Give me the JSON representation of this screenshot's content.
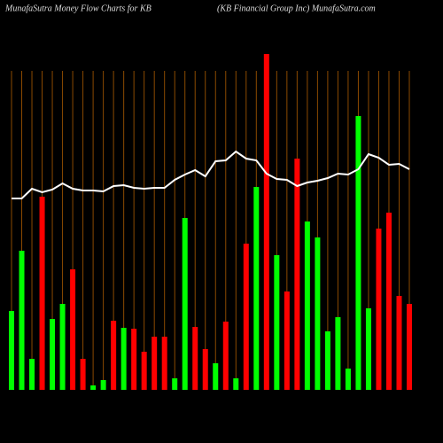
{
  "title": "MunafaSutra  Money Flow  Charts for KB",
  "subtitle": "(KB Financial Group Inc) MunafaSutra.com",
  "chart_data": {
    "type": "bar",
    "categories": [
      null,
      null,
      null,
      null,
      null,
      null,
      null,
      null,
      null,
      null,
      null,
      null,
      null,
      null,
      null,
      null,
      null,
      null,
      null,
      null,
      null,
      null,
      null,
      null,
      null,
      null,
      null,
      null,
      null,
      null,
      null,
      null,
      null,
      null,
      null,
      null,
      null,
      null,
      null,
      null
    ],
    "ylim": [
      0,
      400
    ],
    "grid": true,
    "grid_color": "#8b4a00",
    "series": [
      {
        "type": "bar",
        "colors": [
          "#00ff00",
          "#00ff00",
          "#00ff00",
          "#ff0000",
          "#00ff00",
          "#00ff00",
          "#ff0000",
          "#ff0000",
          "#00ff00",
          "#00ff00",
          "#ff0000",
          "#00ff00",
          "#ff0000",
          "#ff0000",
          "#ff0000",
          "#ff0000",
          "#00ff00",
          "#00ff00",
          "#ff0000",
          "#ff0000",
          "#00ff00",
          "#ff0000",
          "#00ff00",
          "#ff0000",
          "#00ff00",
          "#ff0000",
          "#00ff00",
          "#ff0000",
          "#ff0000",
          "#00ff00",
          "#00ff00",
          "#00ff00",
          "#00ff00",
          "#00ff00",
          "#00ff00",
          "#00ff00",
          "#ff0000",
          "#ff0000",
          "#ff0000",
          "#ff0000"
        ],
        "values": [
          89,
          157,
          35,
          218,
          80,
          97,
          136,
          35,
          5,
          11,
          78,
          70,
          69,
          43,
          60,
          60,
          13,
          194,
          71,
          46,
          30,
          77,
          13,
          165,
          229,
          379,
          152,
          111,
          261,
          190,
          172,
          66,
          82,
          24,
          309,
          92,
          182,
          200,
          106,
          97
        ]
      },
      {
        "type": "line",
        "color": "#ffffff",
        "values": [
          216,
          216,
          227,
          223,
          226,
          233,
          227,
          225,
          225,
          224,
          230,
          231,
          228,
          227,
          228,
          228,
          237,
          243,
          248,
          241,
          258,
          259,
          269,
          261,
          259,
          244,
          238,
          237,
          230,
          234,
          236,
          239,
          244,
          243,
          249,
          266,
          262,
          254,
          255,
          249
        ]
      }
    ]
  }
}
